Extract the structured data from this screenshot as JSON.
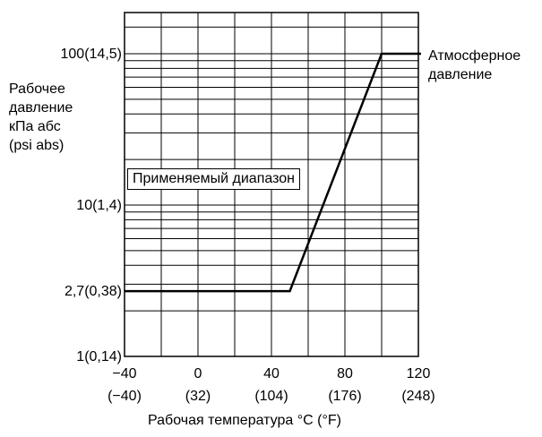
{
  "chart_data": {
    "type": "line",
    "xlabel": "Рабочая температура °C (°F)",
    "ylabel_lines": [
      "Рабочее",
      "давление",
      "кПа абс",
      "(psi abs)"
    ],
    "y_scale": "log",
    "xlim": [
      -40,
      120
    ],
    "ylim": [
      1,
      200
    ],
    "x_ticks": [
      {
        "value": -40,
        "label": "−40",
        "sublabel": "(−40)"
      },
      {
        "value": 0,
        "label": "0",
        "sublabel": "(32)"
      },
      {
        "value": 40,
        "label": "40",
        "sublabel": "(104)"
      },
      {
        "value": 80,
        "label": "80",
        "sublabel": "(176)"
      },
      {
        "value": 120,
        "label": "120",
        "sublabel": "(248)"
      }
    ],
    "y_ticks": [
      {
        "value": 1,
        "label": "1(0,14)"
      },
      {
        "value": 2.7,
        "label": "2,7(0,38)"
      },
      {
        "value": 10,
        "label": "10(1,4)"
      },
      {
        "value": 100,
        "label": "100(14,5)"
      }
    ],
    "grid": true,
    "series": [
      {
        "x": [
          -40,
          50,
          100,
          120
        ],
        "y": [
          2.7,
          2.7,
          100,
          100
        ]
      }
    ],
    "annotations": {
      "range_label": "Применяемый диапазон",
      "atmospheric_lines": [
        "Атмосферное",
        "давление"
      ]
    }
  }
}
